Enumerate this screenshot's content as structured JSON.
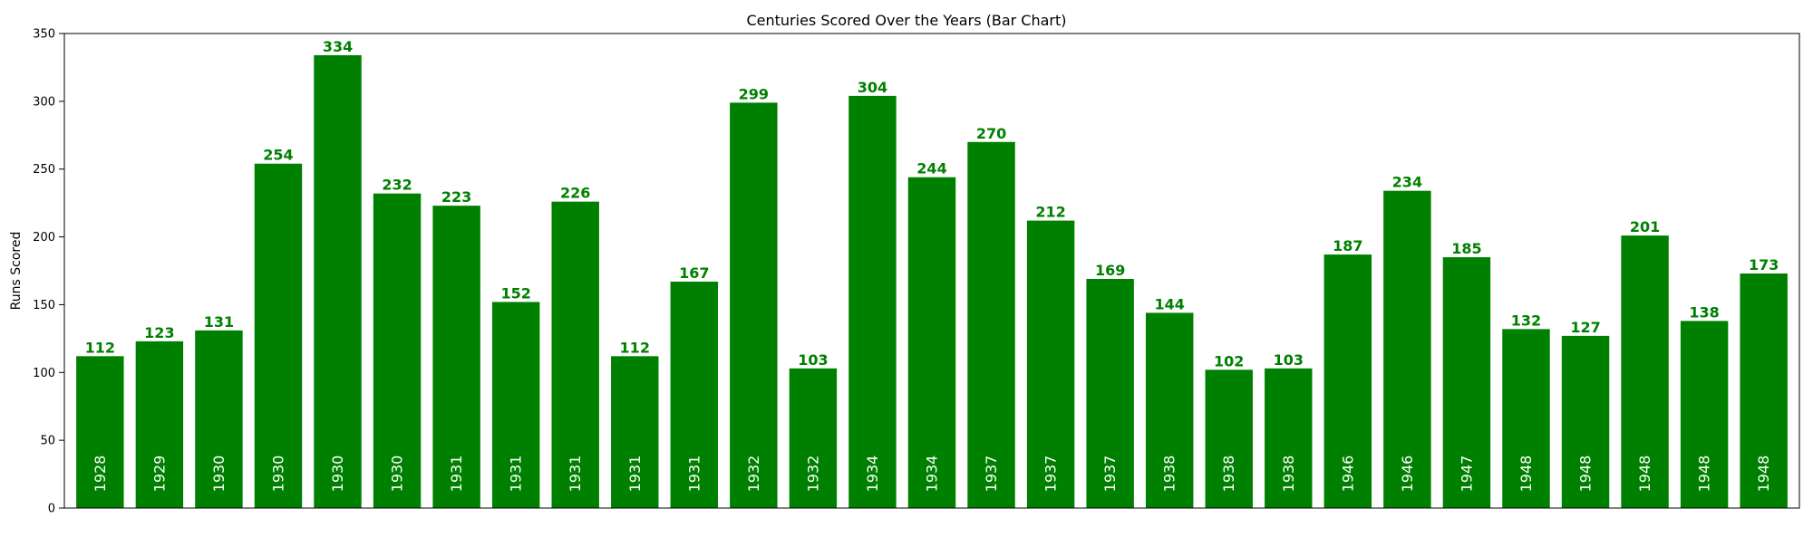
{
  "chart_data": {
    "type": "bar",
    "title": "Centuries Scored Over the Years (Bar Chart)",
    "xlabel": "",
    "ylabel": "Runs Scored",
    "ylim": [
      0,
      350
    ],
    "yticks": [
      0,
      50,
      100,
      150,
      200,
      250,
      300,
      350
    ],
    "grid": false,
    "bar_color": "#008000",
    "value_label_color": "#008000",
    "year_label_color": "#ffffff",
    "categories": [
      "1928",
      "1929",
      "1930",
      "1930",
      "1930",
      "1930",
      "1931",
      "1931",
      "1931",
      "1931",
      "1931",
      "1932",
      "1932",
      "1934",
      "1934",
      "1937",
      "1937",
      "1937",
      "1938",
      "1938",
      "1938",
      "1946",
      "1946",
      "1947",
      "1948",
      "1948",
      "1948",
      "1948",
      "1948"
    ],
    "values": [
      112,
      123,
      131,
      254,
      334,
      232,
      223,
      152,
      226,
      112,
      167,
      299,
      103,
      304,
      244,
      270,
      212,
      169,
      144,
      102,
      103,
      187,
      234,
      185,
      132,
      127,
      201,
      138,
      173
    ]
  }
}
